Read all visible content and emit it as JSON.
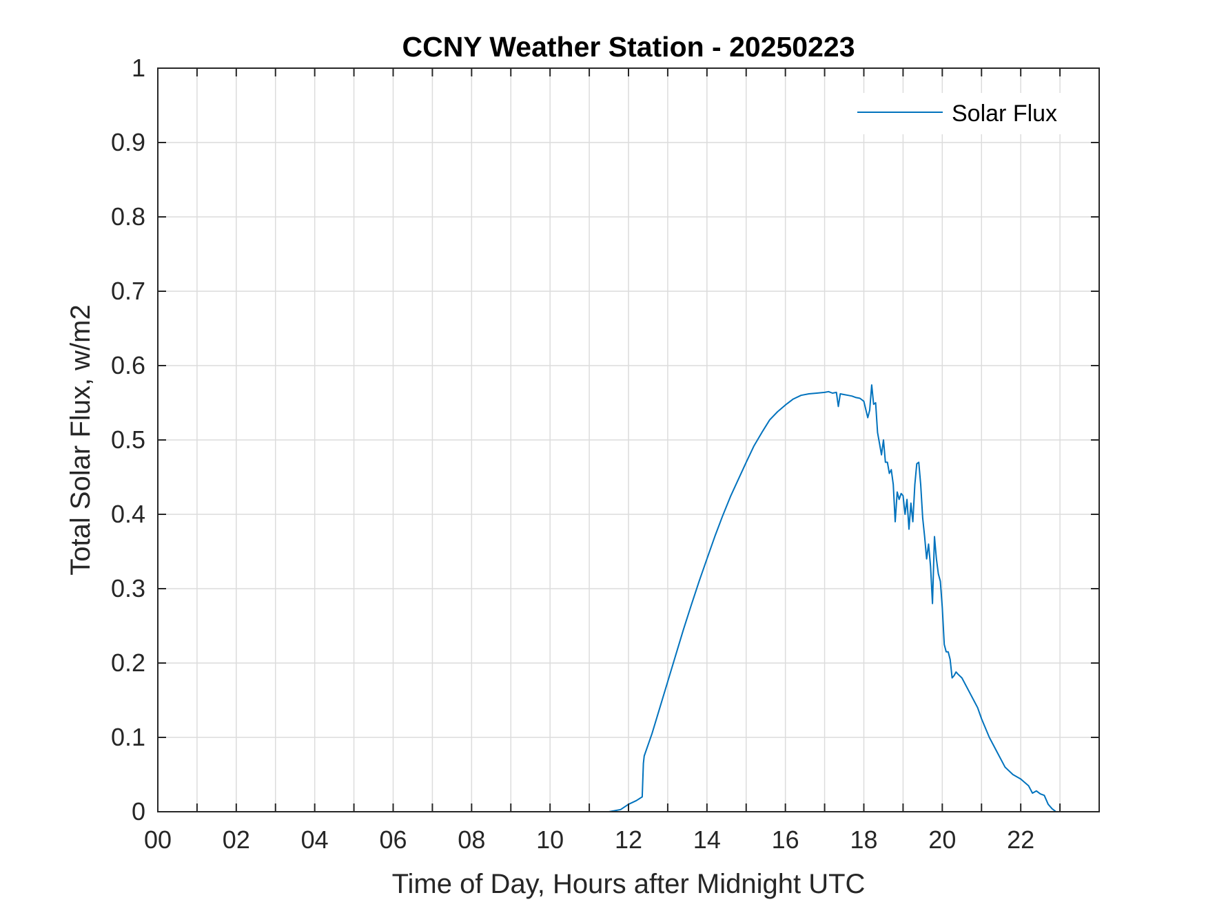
{
  "chart_data": {
    "type": "line",
    "title": "CCNY Weather Station - 20250223",
    "xlabel": "Time of Day, Hours after Midnight UTC",
    "ylabel": "Total Solar Flux, w/m2",
    "xlim": [
      0,
      24
    ],
    "ylim": [
      0,
      1
    ],
    "x_ticks": [
      0,
      2,
      4,
      6,
      8,
      10,
      12,
      14,
      16,
      18,
      20,
      22
    ],
    "x_tick_labels": [
      "00",
      "02",
      "04",
      "06",
      "08",
      "10",
      "12",
      "14",
      "16",
      "18",
      "20",
      "22"
    ],
    "x_minor_grid": [
      1,
      3,
      5,
      7,
      9,
      11,
      13,
      15,
      17,
      19,
      21,
      23
    ],
    "y_ticks": [
      0,
      0.1,
      0.2,
      0.3,
      0.4,
      0.5,
      0.6,
      0.7,
      0.8,
      0.9,
      1
    ],
    "y_tick_labels": [
      "0",
      "0.1",
      "0.2",
      "0.3",
      "0.4",
      "0.5",
      "0.6",
      "0.7",
      "0.8",
      "0.9",
      "1"
    ],
    "grid": true,
    "legend": {
      "position": "top-right"
    },
    "series": [
      {
        "name": "Solar Flux",
        "color": "#0072BD",
        "x": [
          0,
          11.5,
          11.8,
          12.0,
          12.2,
          12.35,
          12.38,
          12.4,
          12.6,
          12.8,
          13.0,
          13.2,
          13.4,
          13.6,
          13.8,
          14.0,
          14.2,
          14.4,
          14.6,
          14.8,
          15.0,
          15.2,
          15.4,
          15.6,
          15.8,
          16.0,
          16.2,
          16.4,
          16.6,
          16.8,
          17.0,
          17.1,
          17.2,
          17.3,
          17.35,
          17.4,
          17.5,
          17.6,
          17.7,
          17.8,
          17.9,
          18.0,
          18.1,
          18.15,
          18.2,
          18.25,
          18.3,
          18.35,
          18.4,
          18.45,
          18.5,
          18.55,
          18.6,
          18.65,
          18.7,
          18.75,
          18.8,
          18.85,
          18.9,
          18.95,
          19.0,
          19.05,
          19.1,
          19.15,
          19.2,
          19.25,
          19.3,
          19.35,
          19.4,
          19.45,
          19.5,
          19.55,
          19.6,
          19.65,
          19.7,
          19.75,
          19.8,
          19.85,
          19.9,
          19.95,
          20.0,
          20.05,
          20.1,
          20.15,
          20.2,
          20.25,
          20.3,
          20.35,
          20.4,
          20.5,
          20.6,
          20.7,
          20.8,
          20.9,
          21.0,
          21.2,
          21.4,
          21.6,
          21.8,
          22.0,
          22.2,
          22.3,
          22.4,
          22.5,
          22.6,
          22.7,
          22.8,
          22.9,
          23.0,
          24.0
        ],
        "y": [
          0,
          0,
          0.003,
          0.01,
          0.015,
          0.02,
          0.065,
          0.075,
          0.105,
          0.14,
          0.175,
          0.21,
          0.245,
          0.278,
          0.31,
          0.34,
          0.37,
          0.398,
          0.424,
          0.447,
          0.47,
          0.492,
          0.51,
          0.527,
          0.538,
          0.547,
          0.555,
          0.56,
          0.562,
          0.563,
          0.564,
          0.565,
          0.563,
          0.564,
          0.545,
          0.562,
          0.561,
          0.56,
          0.559,
          0.557,
          0.556,
          0.552,
          0.53,
          0.54,
          0.574,
          0.548,
          0.55,
          0.51,
          0.495,
          0.48,
          0.5,
          0.47,
          0.47,
          0.455,
          0.46,
          0.44,
          0.39,
          0.43,
          0.42,
          0.428,
          0.425,
          0.4,
          0.42,
          0.38,
          0.415,
          0.39,
          0.44,
          0.468,
          0.47,
          0.44,
          0.395,
          0.37,
          0.34,
          0.36,
          0.33,
          0.28,
          0.37,
          0.34,
          0.32,
          0.31,
          0.275,
          0.225,
          0.215,
          0.215,
          0.205,
          0.18,
          0.183,
          0.188,
          0.185,
          0.18,
          0.17,
          0.16,
          0.15,
          0.14,
          0.125,
          0.1,
          0.08,
          0.06,
          0.05,
          0.044,
          0.035,
          0.025,
          0.028,
          0.024,
          0.022,
          0.01,
          0.004,
          0,
          0,
          0
        ]
      }
    ]
  }
}
